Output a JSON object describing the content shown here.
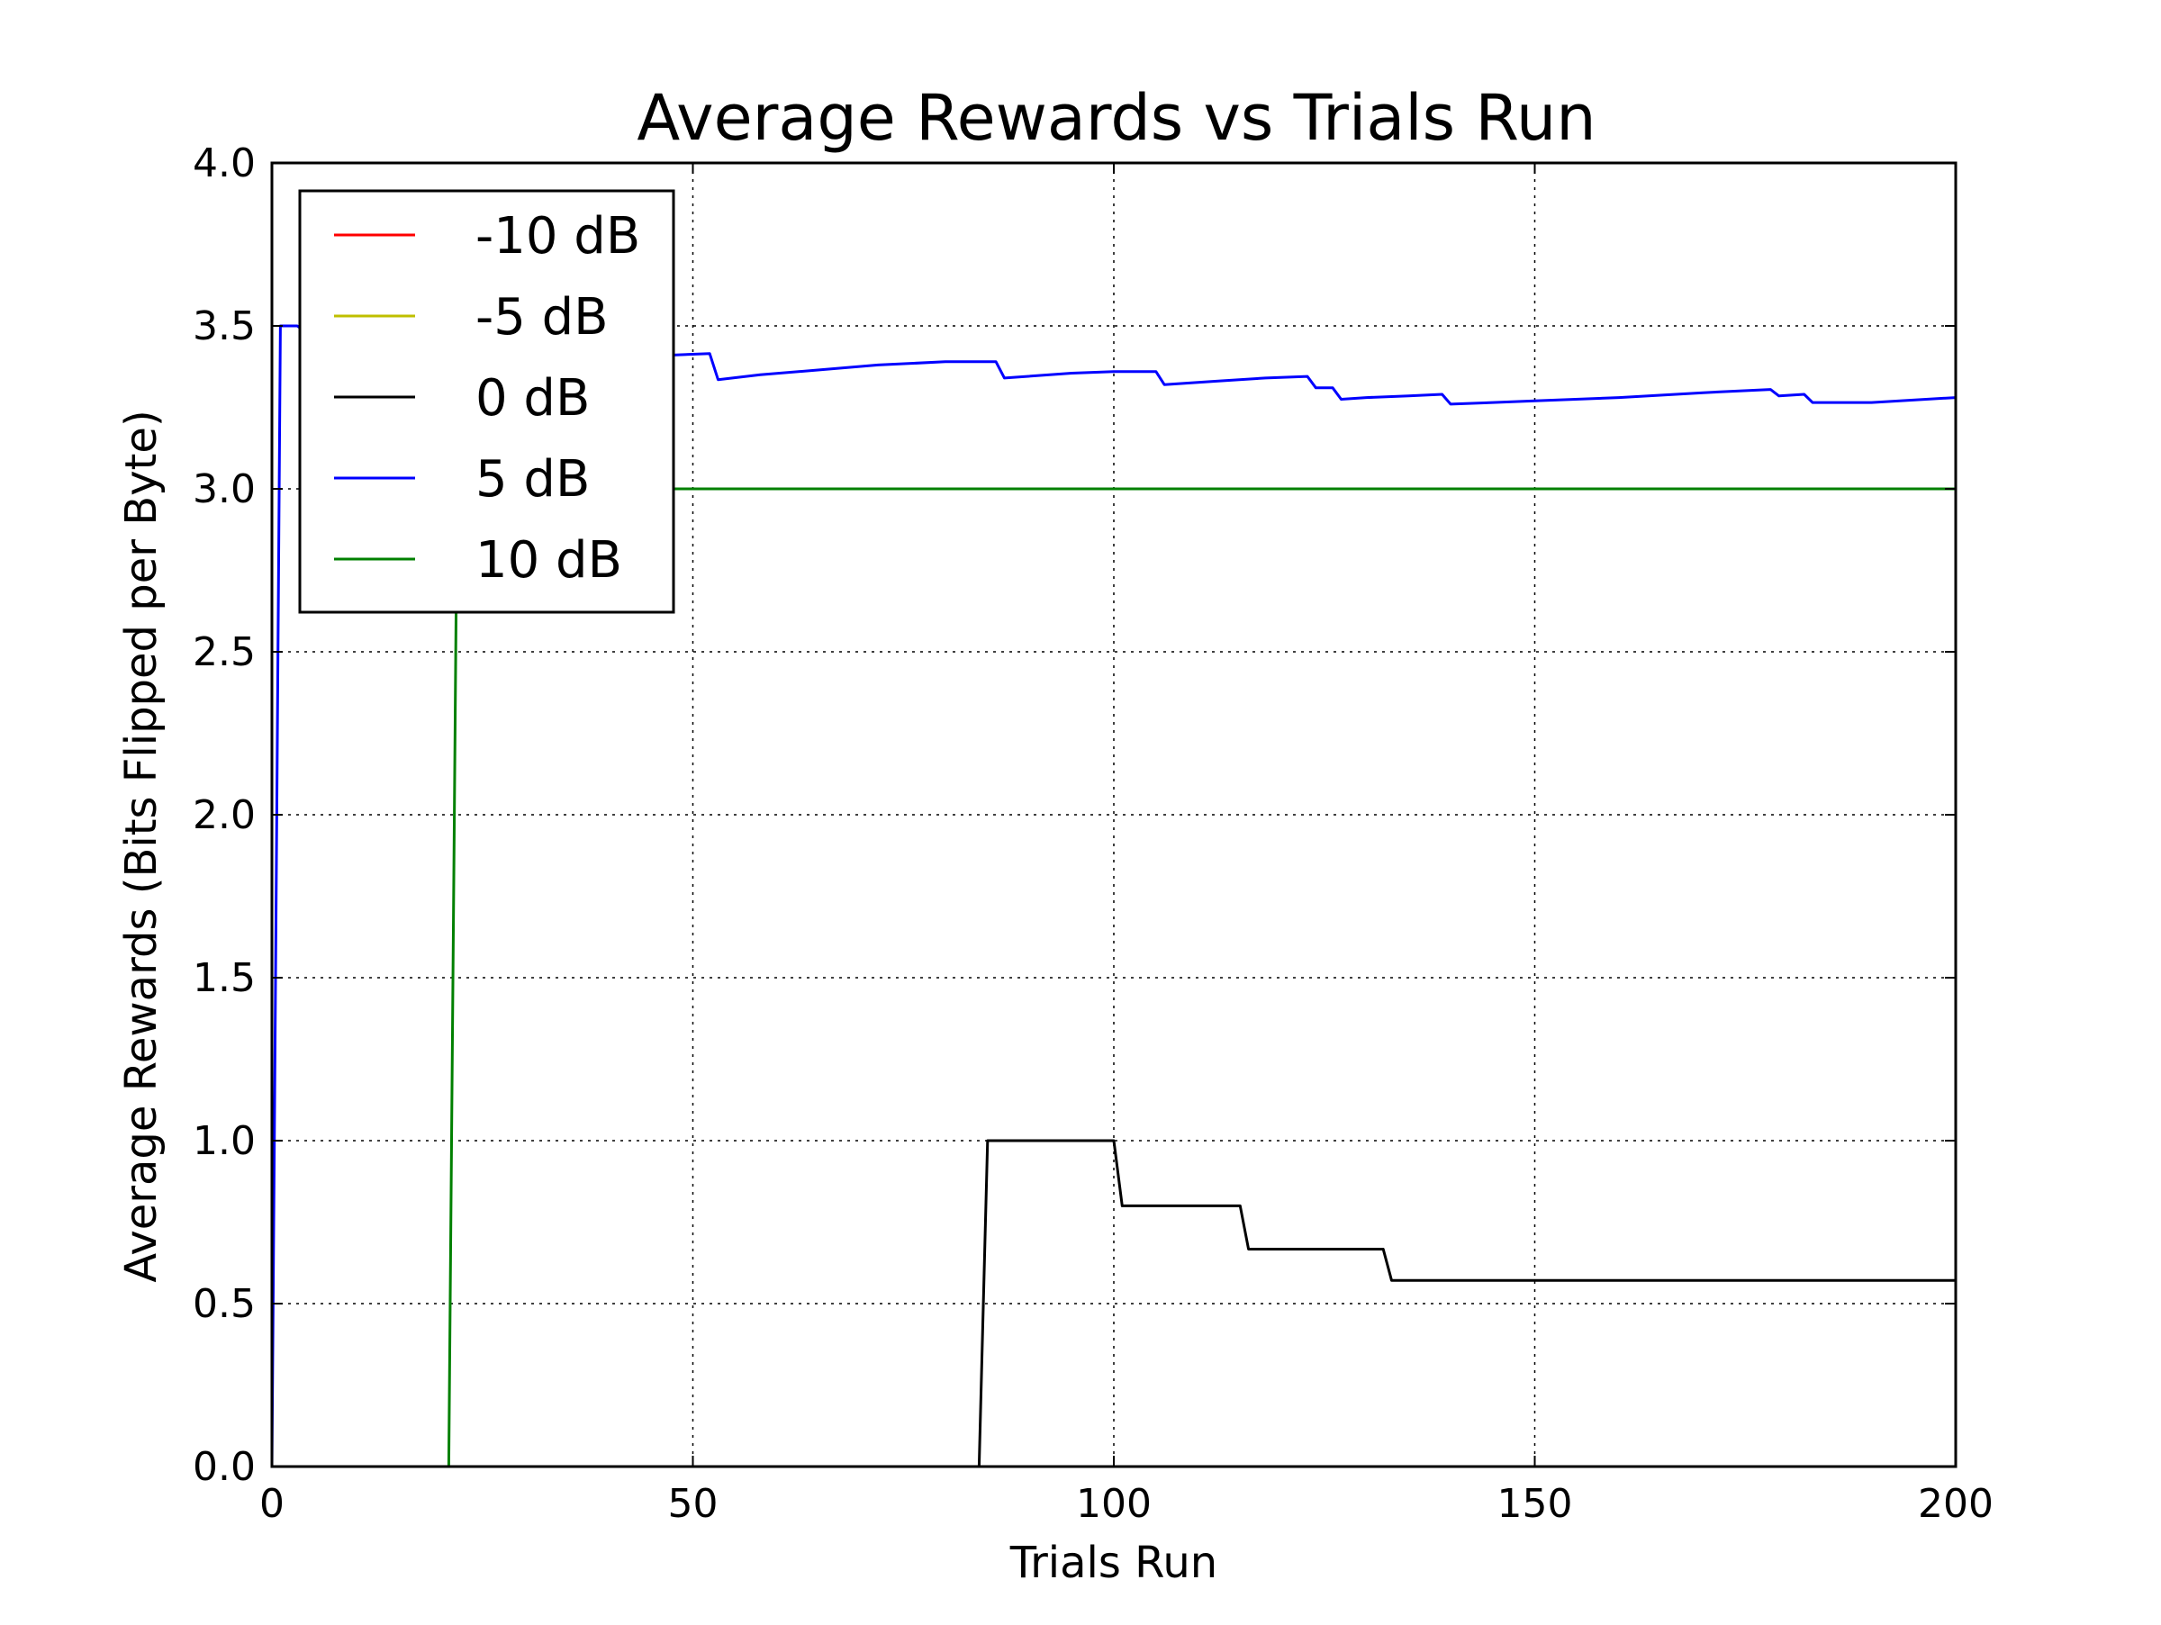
{
  "chart_data": {
    "type": "line",
    "title": "Average Rewards vs Trials Run",
    "xlabel": "Trials Run",
    "ylabel": "Average Rewards (Bits Flipped per Byte)",
    "xlim": [
      0,
      200
    ],
    "ylim": [
      0,
      4
    ],
    "x_ticks": [
      "0",
      "50",
      "100",
      "150",
      "200"
    ],
    "y_ticks": [
      "0.0",
      "0.5",
      "1.0",
      "1.5",
      "2.0",
      "2.5",
      "3.0",
      "3.5",
      "4.0"
    ],
    "grid": true,
    "legend_position": "top-left",
    "series": [
      {
        "name": "-10 dB",
        "color": "#ff0000",
        "points": [
          [
            0,
            0
          ],
          [
            200,
            0
          ]
        ]
      },
      {
        "name": "-5 dB",
        "color": "#bfbf00",
        "points": [
          [
            0,
            0
          ],
          [
            200,
            0
          ]
        ]
      },
      {
        "name": "0 dB",
        "color": "#000000",
        "points": [
          [
            0,
            0
          ],
          [
            84,
            0
          ],
          [
            85,
            1.0
          ],
          [
            100,
            1.0
          ],
          [
            101,
            0.8
          ],
          [
            115,
            0.8
          ],
          [
            116,
            0.667
          ],
          [
            132,
            0.667
          ],
          [
            133,
            0.571
          ],
          [
            200,
            0.571
          ]
        ]
      },
      {
        "name": "5 dB",
        "color": "#0000ff",
        "points": [
          [
            0,
            0
          ],
          [
            1,
            3.5
          ],
          [
            3,
            3.5
          ],
          [
            6,
            3.44
          ],
          [
            10,
            3.42
          ],
          [
            20,
            3.41
          ],
          [
            30,
            3.41
          ],
          [
            40,
            3.41
          ],
          [
            47,
            3.41
          ],
          [
            52,
            3.415
          ],
          [
            53,
            3.335
          ],
          [
            58,
            3.35
          ],
          [
            65,
            3.365
          ],
          [
            72,
            3.38
          ],
          [
            80,
            3.39
          ],
          [
            86,
            3.39
          ],
          [
            87,
            3.34
          ],
          [
            95,
            3.355
          ],
          [
            100,
            3.36
          ],
          [
            105,
            3.36
          ],
          [
            106,
            3.32
          ],
          [
            112,
            3.33
          ],
          [
            118,
            3.34
          ],
          [
            123,
            3.345
          ],
          [
            124,
            3.31
          ],
          [
            126,
            3.31
          ],
          [
            127,
            3.275
          ],
          [
            130,
            3.28
          ],
          [
            135,
            3.285
          ],
          [
            139,
            3.29
          ],
          [
            140,
            3.26
          ],
          [
            145,
            3.265
          ],
          [
            150,
            3.27
          ],
          [
            160,
            3.28
          ],
          [
            170,
            3.295
          ],
          [
            178,
            3.305
          ],
          [
            179,
            3.285
          ],
          [
            182,
            3.29
          ],
          [
            183,
            3.265
          ],
          [
            190,
            3.265
          ],
          [
            200,
            3.28
          ]
        ]
      },
      {
        "name": "10 dB",
        "color": "#008000",
        "points": [
          [
            0,
            0
          ],
          [
            21,
            0
          ],
          [
            22,
            3.0
          ],
          [
            200,
            3.0
          ]
        ]
      }
    ]
  }
}
